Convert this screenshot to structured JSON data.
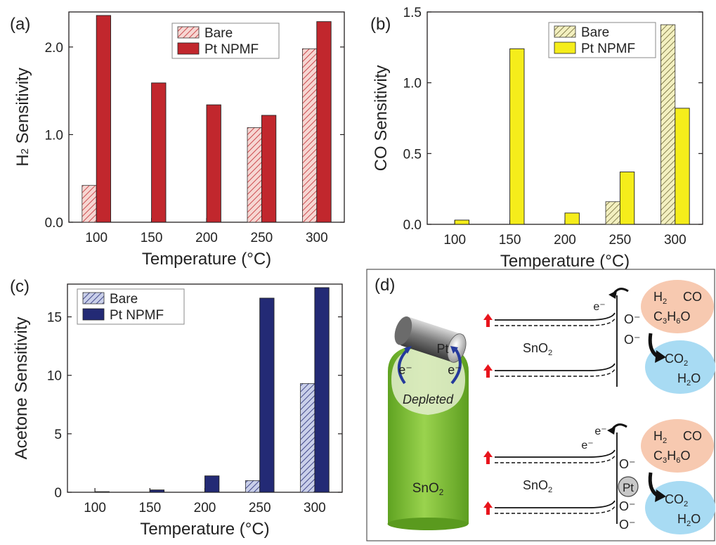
{
  "colors": {
    "axis": "#231f20",
    "red": "#c1272d",
    "redLight": "#f2c0bb",
    "yellow": "#f5ed1b",
    "yellowLight": "#ece8a8",
    "navy": "#232a75",
    "navyLight": "#a8b0d8",
    "green": "#7dc23a",
    "salmon": "#f7c9b0",
    "sky": "#a8dbf3",
    "arrowRed": "#e8141c",
    "arrowBlue": "#253a9c"
  },
  "chart_data": [
    {
      "type": "bar",
      "panel_label": "(a)",
      "ylabel_pre": "H",
      "ylabel_sub": "2",
      "ylabel_post": " Sensitivity",
      "xlabel": "Temperature (°C)",
      "categories": [
        "100",
        "150",
        "200",
        "250",
        "300"
      ],
      "ylim": [
        0,
        2.4
      ],
      "yticks": [
        "0.0",
        "1.0",
        "2.0"
      ],
      "ytick_values": [
        0,
        1,
        2
      ],
      "legend_position": "top-right",
      "series": [
        {
          "name": "Bare",
          "values": [
            0.42,
            null,
            null,
            1.08,
            1.98
          ],
          "pattern": "hatched"
        },
        {
          "name": "Pt NPMF",
          "values": [
            2.36,
            1.59,
            1.34,
            1.22,
            2.29
          ],
          "pattern": "solid"
        }
      ]
    },
    {
      "type": "bar",
      "panel_label": "(b)",
      "ylabel": "CO Sensitivity",
      "xlabel": "Temperature (°C)",
      "categories": [
        "100",
        "150",
        "200",
        "250",
        "300"
      ],
      "ylim": [
        0,
        1.5
      ],
      "yticks": [
        "0.0",
        "0.5",
        "1.0",
        "1.5"
      ],
      "ytick_values": [
        0,
        0.5,
        1.0,
        1.5
      ],
      "legend_position": "top-right",
      "series": [
        {
          "name": "Bare",
          "values": [
            null,
            null,
            null,
            0.16,
            1.41
          ],
          "pattern": "hatched"
        },
        {
          "name": "Pt NPMF",
          "values": [
            0.03,
            1.24,
            0.08,
            0.37,
            0.82
          ],
          "pattern": "solid"
        }
      ]
    },
    {
      "type": "bar",
      "panel_label": "(c)",
      "ylabel": "Acetone Sensitivity",
      "xlabel": "Temperature (°C)",
      "categories": [
        "100",
        "150",
        "200",
        "250",
        "300"
      ],
      "ylim": [
        0,
        17.8
      ],
      "yticks": [
        "0",
        "5",
        "10",
        "15"
      ],
      "ytick_values": [
        0,
        5,
        10,
        15
      ],
      "legend_position": "top-left",
      "series": [
        {
          "name": "Bare",
          "values": [
            null,
            null,
            null,
            1.0,
            9.3
          ],
          "pattern": "hatched"
        },
        {
          "name": "Pt NPMF",
          "values": [
            0.05,
            0.2,
            1.4,
            16.6,
            17.5
          ],
          "pattern": "solid"
        }
      ]
    }
  ],
  "diagram_d": {
    "panel_label": "(d)",
    "pt_label": "Pt",
    "electron_label": "e⁻",
    "depleted_label": "Depleted",
    "sno2_pre": "SnO",
    "sno2_sub": "2",
    "o_minus": "O⁻",
    "gas_h2_pre": "H",
    "gas_h2_sub": "2",
    "gas_co": "CO",
    "gas_acetone_parts": [
      "C",
      "3",
      "H",
      "6",
      "O"
    ],
    "prod_co2_pre": "CO",
    "prod_co2_sub": "2",
    "prod_h2o_pre": "H",
    "prod_h2o_sub": "2",
    "prod_h2o_post": "O"
  }
}
